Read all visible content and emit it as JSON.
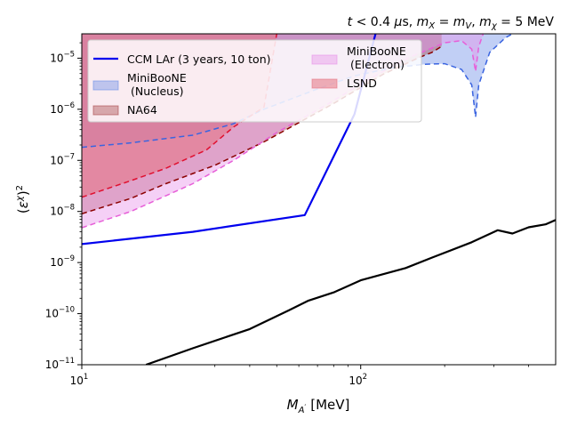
{
  "chart_data": {
    "type": "line",
    "title": "t < 0.4 μs, m_X = m_V, m_χ = 5 MeV",
    "title_parts": {
      "t_sym": "t",
      "t_rest": " < 0.4 ",
      "mu": "μ",
      "t_unit": "s, ",
      "mX_m": "m",
      "mX_sub": "X",
      "eq1": " = ",
      "mV_m": "m",
      "mV_sub": "V",
      "comma": ", ",
      "mchi_m": "m",
      "mchi_sub": "χ",
      "mchi_rest": " = 5 MeV"
    },
    "xlabel_parts": {
      "main": "M",
      "sub": "A",
      "prime": "′",
      "unit": " [MeV]"
    },
    "ylabel_parts": {
      "open": "(",
      "eps": "ε",
      "sup_chi": "χ",
      "close": ")",
      "sup2": "2"
    },
    "xlim": [
      10,
      500
    ],
    "ylim": [
      1e-11,
      3e-05
    ],
    "xscale": "log",
    "yscale": "log",
    "grid": false,
    "legend_placement": "top-left",
    "x_ticks": [
      {
        "value": 10,
        "base": "10",
        "exp": "1"
      },
      {
        "value": 100,
        "base": "10",
        "exp": "2"
      }
    ],
    "y_ticks": [
      {
        "value": 1e-11,
        "base": "10",
        "exp": "−11"
      },
      {
        "value": 1e-10,
        "base": "10",
        "exp": "−10"
      },
      {
        "value": 1e-09,
        "base": "10",
        "exp": "−9"
      },
      {
        "value": 1e-08,
        "base": "10",
        "exp": "−8"
      },
      {
        "value": 1e-07,
        "base": "10",
        "exp": "−7"
      },
      {
        "value": 1e-06,
        "base": "10",
        "exp": "−6"
      },
      {
        "value": 1e-05,
        "base": "10",
        "exp": "−5"
      }
    ],
    "series": [
      {
        "name": "CCM LAr (3 years, 10 ton)",
        "kind": "line",
        "color": "#0000ee",
        "points": [
          [
            10,
            2.3e-09
          ],
          [
            25,
            4e-09
          ],
          [
            63,
            8.5e-09
          ],
          [
            95,
            8e-07
          ],
          [
            113,
            3e-05
          ]
        ]
      },
      {
        "name": "",
        "kind": "line",
        "color": "#000000",
        "points": [
          [
            17,
            1e-11
          ],
          [
            25,
            2.1e-11
          ],
          [
            40,
            5e-11
          ],
          [
            55,
            1.15e-10
          ],
          [
            65,
            1.8e-10
          ],
          [
            80,
            2.6e-10
          ],
          [
            100,
            4.5e-10
          ],
          [
            145,
            7.8e-10
          ],
          [
            180,
            1.25e-09
          ],
          [
            250,
            2.5e-09
          ],
          [
            310,
            4.3e-09
          ],
          [
            350,
            3.7e-09
          ],
          [
            400,
            4.9e-09
          ],
          [
            460,
            5.6e-09
          ],
          [
            500,
            6.8e-09
          ]
        ]
      },
      {
        "name": "MiniBooNE\n (Nucleus)",
        "kind": "fill",
        "color": "#6b8de6",
        "fill_opacity": 0.42,
        "edge_color": "#3a64e0",
        "edge_dash": "6,4",
        "points": [
          [
            10,
            1.8e-07
          ],
          [
            15,
            2.2e-07
          ],
          [
            25,
            3.1e-07
          ],
          [
            35,
            5.2e-07
          ],
          [
            45,
            1e-06
          ],
          [
            70,
            2.5e-06
          ],
          [
            95,
            4.5e-06
          ],
          [
            130,
            6.5e-06
          ],
          [
            170,
            7.6e-06
          ],
          [
            200,
            7.8e-06
          ],
          [
            230,
            6e-06
          ],
          [
            250,
            3e-06
          ],
          [
            258,
            7e-07
          ],
          [
            265,
            3e-06
          ],
          [
            290,
            1.3e-05
          ],
          [
            330,
            2.5e-05
          ],
          [
            350,
            3e-05
          ]
        ]
      },
      {
        "name": "NA64",
        "kind": "fill",
        "color": "#a8474a",
        "fill_opacity": 0.42,
        "edge_color": "#8b0000",
        "edge_dash": "6,4",
        "points": [
          [
            10,
            9e-09
          ],
          [
            15,
            1.8e-08
          ],
          [
            20,
            3.5e-08
          ],
          [
            30,
            8e-08
          ],
          [
            45,
            2.3e-07
          ],
          [
            80,
            1.3e-06
          ],
          [
            120,
            4.8e-06
          ],
          [
            160,
            1e-05
          ],
          [
            180,
            1.3e-05
          ],
          [
            195,
            1.7e-05
          ]
        ]
      },
      {
        "name": "MiniBooNE\n (Electron)",
        "kind": "fill",
        "color": "#e890ea",
        "fill_opacity": 0.42,
        "edge_color": "#e75fd8",
        "edge_dash": "6,4",
        "points": [
          [
            10,
            4.8e-09
          ],
          [
            15,
            1e-08
          ],
          [
            25,
            3.5e-08
          ],
          [
            35,
            1e-07
          ],
          [
            50,
            3.5e-07
          ],
          [
            75,
            1.2e-06
          ],
          [
            110,
            4.2e-06
          ],
          [
            150,
            1.05e-05
          ],
          [
            200,
            2e-05
          ],
          [
            230,
            2.2e-05
          ],
          [
            250,
            1.5e-05
          ],
          [
            258,
            5.5e-06
          ],
          [
            265,
            1.7e-05
          ],
          [
            275,
            3e-05
          ]
        ]
      },
      {
        "name": "LSND",
        "kind": "fill",
        "color": "#e57282",
        "fill_opacity": 0.55,
        "edge_color": "#e01030",
        "edge_dash": "6,4",
        "points": [
          [
            10,
            1.9e-08
          ],
          [
            15,
            4e-08
          ],
          [
            20,
            7e-08
          ],
          [
            28,
            1.6e-07
          ],
          [
            35,
            4.5e-07
          ],
          [
            45,
            1.1e-06
          ],
          [
            50,
            3e-05
          ]
        ]
      }
    ]
  }
}
